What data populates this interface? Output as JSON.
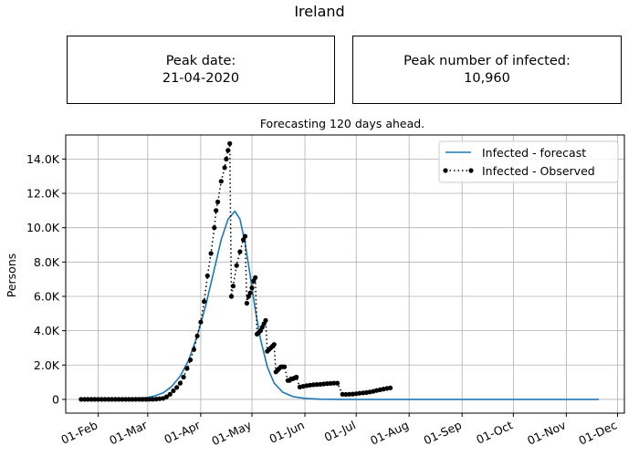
{
  "figure_title": "Ireland",
  "cards": {
    "peak_date": {
      "label": "Peak date:",
      "value": "21-04-2020"
    },
    "peak_infected": {
      "label": "Peak number of infected:",
      "value": "10,960"
    }
  },
  "colors": {
    "forecast": "#1f77b4",
    "observed": "#000000",
    "grid": "#b0b0b0"
  },
  "chart_data": {
    "type": "line",
    "title": "Forecasting 120 days ahead.",
    "xlabel": "",
    "ylabel": "Persons",
    "x_type": "date",
    "xlim": [
      "2020-01-13",
      "2020-12-05"
    ],
    "ylim": [
      -800,
      15400
    ],
    "grid": true,
    "legend_position": "top-right",
    "x_ticks": [
      {
        "date": "2020-02-01",
        "label": "01-Feb"
      },
      {
        "date": "2020-03-01",
        "label": "01-Mar"
      },
      {
        "date": "2020-04-01",
        "label": "01-Apr"
      },
      {
        "date": "2020-05-01",
        "label": "01-May"
      },
      {
        "date": "2020-06-01",
        "label": "01-Jun"
      },
      {
        "date": "2020-07-01",
        "label": "01-Jul"
      },
      {
        "date": "2020-08-01",
        "label": "01-Aug"
      },
      {
        "date": "2020-09-01",
        "label": "01-Sep"
      },
      {
        "date": "2020-10-01",
        "label": "01-Oct"
      },
      {
        "date": "2020-11-01",
        "label": "01-Nov"
      },
      {
        "date": "2020-12-01",
        "label": "01-Dec"
      }
    ],
    "y_ticks": [
      {
        "value": 0,
        "label": "0"
      },
      {
        "value": 2000,
        "label": "2.0K"
      },
      {
        "value": 4000,
        "label": "4.0K"
      },
      {
        "value": 6000,
        "label": "6.0K"
      },
      {
        "value": 8000,
        "label": "8.0K"
      },
      {
        "value": 10000,
        "label": "10.0K"
      },
      {
        "value": 12000,
        "label": "12.0K"
      },
      {
        "value": 14000,
        "label": "14.0K"
      }
    ],
    "series": [
      {
        "name": "Infected - forecast",
        "style": "line",
        "points": [
          [
            "2020-01-22",
            0
          ],
          [
            "2020-02-09",
            10
          ],
          [
            "2020-02-19",
            40
          ],
          [
            "2020-02-29",
            100
          ],
          [
            "2020-03-05",
            200
          ],
          [
            "2020-03-10",
            380
          ],
          [
            "2020-03-15",
            750
          ],
          [
            "2020-03-20",
            1350
          ],
          [
            "2020-03-25",
            2300
          ],
          [
            "2020-03-30",
            3700
          ],
          [
            "2020-04-04",
            5500
          ],
          [
            "2020-04-09",
            7600
          ],
          [
            "2020-04-13",
            9300
          ],
          [
            "2020-04-17",
            10500
          ],
          [
            "2020-04-21",
            10960
          ],
          [
            "2020-04-24",
            10500
          ],
          [
            "2020-04-27",
            9100
          ],
          [
            "2020-04-30",
            7200
          ],
          [
            "2020-05-03",
            5200
          ],
          [
            "2020-05-06",
            3500
          ],
          [
            "2020-05-10",
            1900
          ],
          [
            "2020-05-14",
            950
          ],
          [
            "2020-05-19",
            420
          ],
          [
            "2020-05-25",
            160
          ],
          [
            "2020-06-01",
            60
          ],
          [
            "2020-06-10",
            15
          ],
          [
            "2020-06-25",
            3
          ],
          [
            "2020-07-20",
            0
          ],
          [
            "2020-09-01",
            0
          ],
          [
            "2020-10-15",
            0
          ],
          [
            "2020-11-20",
            0
          ]
        ]
      },
      {
        "name": "Infected - Observed",
        "style": "dotted-markers",
        "points": [
          [
            "2020-01-22",
            0
          ],
          [
            "2020-01-24",
            0
          ],
          [
            "2020-01-26",
            0
          ],
          [
            "2020-01-28",
            0
          ],
          [
            "2020-01-30",
            0
          ],
          [
            "2020-02-01",
            0
          ],
          [
            "2020-02-03",
            0
          ],
          [
            "2020-02-05",
            0
          ],
          [
            "2020-02-07",
            0
          ],
          [
            "2020-02-09",
            0
          ],
          [
            "2020-02-11",
            0
          ],
          [
            "2020-02-13",
            0
          ],
          [
            "2020-02-15",
            0
          ],
          [
            "2020-02-17",
            0
          ],
          [
            "2020-02-19",
            0
          ],
          [
            "2020-02-21",
            0
          ],
          [
            "2020-02-23",
            0
          ],
          [
            "2020-02-25",
            0
          ],
          [
            "2020-02-27",
            0
          ],
          [
            "2020-02-29",
            0
          ],
          [
            "2020-03-02",
            5
          ],
          [
            "2020-03-04",
            10
          ],
          [
            "2020-03-06",
            20
          ],
          [
            "2020-03-08",
            40
          ],
          [
            "2020-03-10",
            60
          ],
          [
            "2020-03-12",
            150
          ],
          [
            "2020-03-14",
            300
          ],
          [
            "2020-03-16",
            500
          ],
          [
            "2020-03-18",
            700
          ],
          [
            "2020-03-20",
            950
          ],
          [
            "2020-03-22",
            1300
          ],
          [
            "2020-03-24",
            1800
          ],
          [
            "2020-03-26",
            2300
          ],
          [
            "2020-03-28",
            2900
          ],
          [
            "2020-03-30",
            3700
          ],
          [
            "2020-04-01",
            4500
          ],
          [
            "2020-04-03",
            5700
          ],
          [
            "2020-04-05",
            7200
          ],
          [
            "2020-04-07",
            8500
          ],
          [
            "2020-04-09",
            10000
          ],
          [
            "2020-04-10",
            11000
          ],
          [
            "2020-04-11",
            11500
          ],
          [
            "2020-04-13",
            12700
          ],
          [
            "2020-04-15",
            13500
          ],
          [
            "2020-04-16",
            14000
          ],
          [
            "2020-04-17",
            14500
          ],
          [
            "2020-04-18",
            14900
          ],
          [
            "2020-04-19",
            6000
          ],
          [
            "2020-04-20",
            6600
          ],
          [
            "2020-04-22",
            7800
          ],
          [
            "2020-04-24",
            8600
          ],
          [
            "2020-04-26",
            9300
          ],
          [
            "2020-04-27",
            9500
          ],
          [
            "2020-04-28",
            5600
          ],
          [
            "2020-04-29",
            6000
          ],
          [
            "2020-04-30",
            6200
          ],
          [
            "2020-05-01",
            6500
          ],
          [
            "2020-05-02",
            6900
          ],
          [
            "2020-05-03",
            7100
          ],
          [
            "2020-05-04",
            3800
          ],
          [
            "2020-05-05",
            3900
          ],
          [
            "2020-05-06",
            4000
          ],
          [
            "2020-05-07",
            4200
          ],
          [
            "2020-05-08",
            4400
          ],
          [
            "2020-05-09",
            4600
          ],
          [
            "2020-05-10",
            2800
          ],
          [
            "2020-05-11",
            2900
          ],
          [
            "2020-05-12",
            3000
          ],
          [
            "2020-05-13",
            3100
          ],
          [
            "2020-05-14",
            3200
          ],
          [
            "2020-05-15",
            1600
          ],
          [
            "2020-05-16",
            1700
          ],
          [
            "2020-05-17",
            1800
          ],
          [
            "2020-05-18",
            1900
          ],
          [
            "2020-05-19",
            1900
          ],
          [
            "2020-05-20",
            1900
          ],
          [
            "2020-05-22",
            1100
          ],
          [
            "2020-05-23",
            1100
          ],
          [
            "2020-05-24",
            1200
          ],
          [
            "2020-05-25",
            1200
          ],
          [
            "2020-05-26",
            1250
          ],
          [
            "2020-05-27",
            1300
          ],
          [
            "2020-05-29",
            720
          ],
          [
            "2020-05-31",
            760
          ],
          [
            "2020-06-02",
            800
          ],
          [
            "2020-06-04",
            830
          ],
          [
            "2020-06-06",
            850
          ],
          [
            "2020-06-08",
            870
          ],
          [
            "2020-06-10",
            880
          ],
          [
            "2020-06-12",
            900
          ],
          [
            "2020-06-14",
            920
          ],
          [
            "2020-06-16",
            930
          ],
          [
            "2020-06-18",
            950
          ],
          [
            "2020-06-20",
            950
          ],
          [
            "2020-06-23",
            300
          ],
          [
            "2020-06-25",
            290
          ],
          [
            "2020-06-27",
            300
          ],
          [
            "2020-06-29",
            310
          ],
          [
            "2020-07-01",
            330
          ],
          [
            "2020-07-03",
            360
          ],
          [
            "2020-07-05",
            380
          ],
          [
            "2020-07-07",
            400
          ],
          [
            "2020-07-09",
            430
          ],
          [
            "2020-07-11",
            470
          ],
          [
            "2020-07-13",
            520
          ],
          [
            "2020-07-15",
            560
          ],
          [
            "2020-07-17",
            600
          ],
          [
            "2020-07-19",
            640
          ],
          [
            "2020-07-21",
            670
          ]
        ]
      }
    ]
  }
}
